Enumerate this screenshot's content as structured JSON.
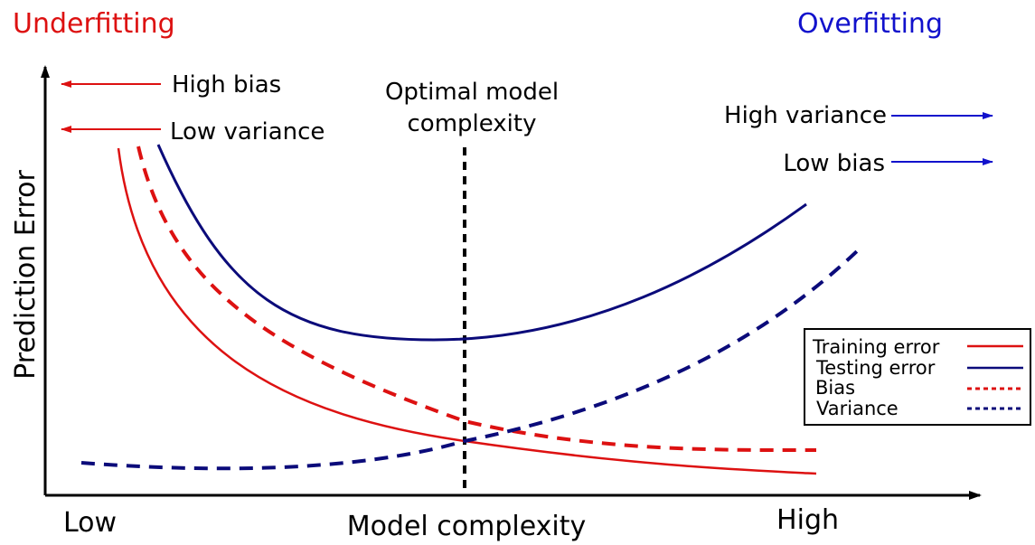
{
  "header": {
    "left_label": "Underfitting",
    "right_label": "Overfitting"
  },
  "annotations": {
    "high_bias_left": "High bias",
    "low_variance_left": "Low variance",
    "optimal": [
      "Optimal model",
      "complexity"
    ],
    "high_variance_right": "High variance",
    "low_bias_right": "Low bias"
  },
  "axes": {
    "ylabel": "Prediction Error",
    "xlabel": "Model complexity",
    "x_low": "Low",
    "x_high": "High"
  },
  "legend": {
    "items": [
      {
        "label": "Training error",
        "color": "#dd1111",
        "style": "solid"
      },
      {
        "label": "Testing error",
        "color": "#0b0b7a",
        "style": "solid"
      },
      {
        "label": "Bias",
        "color": "#dd1111",
        "style": "dashed"
      },
      {
        "label": "Variance",
        "color": "#0b0b7a",
        "style": "dashed"
      }
    ]
  },
  "colors": {
    "underfit": "#dd1111",
    "overfit": "#1111cc",
    "axis": "#000000"
  }
}
